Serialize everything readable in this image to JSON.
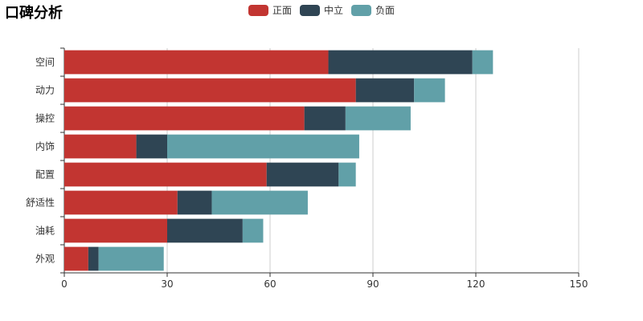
{
  "chart_data": {
    "type": "bar",
    "orientation": "horizontal",
    "stacked": true,
    "title": "口碑分析",
    "categories": [
      "空间",
      "动力",
      "操控",
      "内饰",
      "配置",
      "舒适性",
      "油耗",
      "外观"
    ],
    "series": [
      {
        "name": "正面",
        "color": "#c23531",
        "values": [
          77,
          85,
          70,
          21,
          59,
          33,
          30,
          7
        ]
      },
      {
        "name": "中立",
        "color": "#2f4554",
        "values": [
          42,
          17,
          12,
          9,
          21,
          10,
          22,
          3
        ]
      },
      {
        "name": "负面",
        "color": "#61a0a8",
        "values": [
          6,
          9,
          19,
          56,
          5,
          28,
          6,
          19
        ]
      }
    ],
    "xlim": [
      0,
      150
    ],
    "xticks": [
      0,
      30,
      60,
      90,
      120,
      150
    ],
    "grid": true,
    "legend_position": "top-center"
  }
}
